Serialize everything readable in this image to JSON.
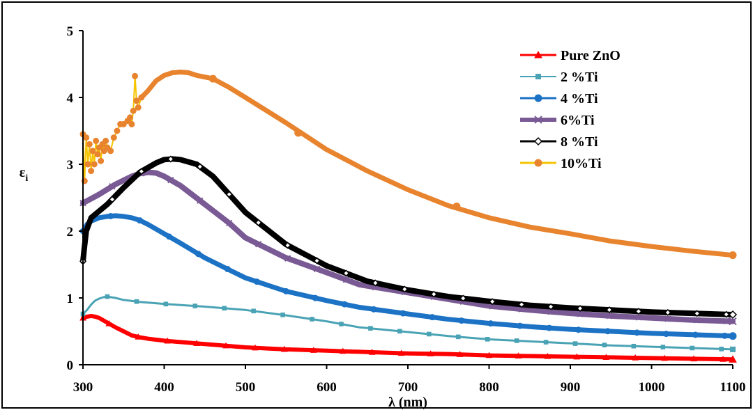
{
  "chart_data": {
    "type": "line",
    "title": "",
    "xlabel": "λ (nm)",
    "ylabel": "εi",
    "ylabel_main": "ε",
    "ylabel_sub": "i",
    "xlim": [
      300,
      1100
    ],
    "ylim": [
      0,
      5
    ],
    "x_ticks": [
      300,
      400,
      500,
      600,
      700,
      800,
      900,
      1000,
      1100
    ],
    "y_ticks": [
      0,
      1,
      2,
      3,
      4,
      5
    ],
    "grid": false,
    "legend_position": "top-right",
    "series": [
      {
        "name": "Pure ZnO",
        "color": "#ff0000",
        "marker": "triangle",
        "points": [
          [
            300,
            0.7
          ],
          [
            305,
            0.72
          ],
          [
            310,
            0.73
          ],
          [
            315,
            0.72
          ],
          [
            320,
            0.7
          ],
          [
            330,
            0.63
          ],
          [
            340,
            0.56
          ],
          [
            350,
            0.5
          ],
          [
            360,
            0.44
          ],
          [
            370,
            0.41
          ],
          [
            380,
            0.39
          ],
          [
            400,
            0.36
          ],
          [
            420,
            0.34
          ],
          [
            450,
            0.31
          ],
          [
            500,
            0.26
          ],
          [
            550,
            0.23
          ],
          [
            600,
            0.21
          ],
          [
            650,
            0.19
          ],
          [
            700,
            0.17
          ],
          [
            750,
            0.16
          ],
          [
            800,
            0.14
          ],
          [
            850,
            0.13
          ],
          [
            900,
            0.12
          ],
          [
            950,
            0.11
          ],
          [
            1000,
            0.1
          ],
          [
            1050,
            0.09
          ],
          [
            1100,
            0.08
          ]
        ]
      },
      {
        "name": "2 %Ti",
        "color": "#4aa3b5",
        "marker": "square",
        "points": [
          [
            300,
            0.76
          ],
          [
            305,
            0.82
          ],
          [
            310,
            0.9
          ],
          [
            315,
            0.96
          ],
          [
            320,
            0.99
          ],
          [
            325,
            1.01
          ],
          [
            330,
            1.02
          ],
          [
            340,
            1.0
          ],
          [
            350,
            0.97
          ],
          [
            370,
            0.94
          ],
          [
            400,
            0.91
          ],
          [
            450,
            0.87
          ],
          [
            500,
            0.82
          ],
          [
            550,
            0.74
          ],
          [
            600,
            0.65
          ],
          [
            640,
            0.56
          ],
          [
            650,
            0.55
          ],
          [
            700,
            0.49
          ],
          [
            750,
            0.43
          ],
          [
            800,
            0.38
          ],
          [
            850,
            0.35
          ],
          [
            900,
            0.32
          ],
          [
            950,
            0.29
          ],
          [
            1000,
            0.27
          ],
          [
            1050,
            0.25
          ],
          [
            1100,
            0.23
          ]
        ]
      },
      {
        "name": "4 %Ti",
        "color": "#1c72c4",
        "marker": "circle",
        "points": [
          [
            300,
            2.0
          ],
          [
            305,
            2.1
          ],
          [
            310,
            2.15
          ],
          [
            320,
            2.2
          ],
          [
            330,
            2.22
          ],
          [
            340,
            2.23
          ],
          [
            350,
            2.22
          ],
          [
            360,
            2.2
          ],
          [
            370,
            2.16
          ],
          [
            380,
            2.1
          ],
          [
            400,
            1.96
          ],
          [
            420,
            1.82
          ],
          [
            450,
            1.6
          ],
          [
            480,
            1.42
          ],
          [
            500,
            1.3
          ],
          [
            550,
            1.1
          ],
          [
            600,
            0.96
          ],
          [
            640,
            0.86
          ],
          [
            700,
            0.76
          ],
          [
            750,
            0.68
          ],
          [
            800,
            0.62
          ],
          [
            850,
            0.57
          ],
          [
            900,
            0.53
          ],
          [
            950,
            0.5
          ],
          [
            1000,
            0.47
          ],
          [
            1050,
            0.45
          ],
          [
            1100,
            0.43
          ]
        ]
      },
      {
        "name": "6%Ti",
        "color": "#7a5a94",
        "marker": "x",
        "points": [
          [
            300,
            2.42
          ],
          [
            320,
            2.55
          ],
          [
            340,
            2.7
          ],
          [
            360,
            2.82
          ],
          [
            370,
            2.86
          ],
          [
            380,
            2.88
          ],
          [
            390,
            2.87
          ],
          [
            400,
            2.82
          ],
          [
            420,
            2.68
          ],
          [
            450,
            2.4
          ],
          [
            480,
            2.12
          ],
          [
            500,
            1.9
          ],
          [
            550,
            1.6
          ],
          [
            600,
            1.38
          ],
          [
            640,
            1.2
          ],
          [
            700,
            1.08
          ],
          [
            750,
            0.98
          ],
          [
            800,
            0.88
          ],
          [
            850,
            0.82
          ],
          [
            900,
            0.77
          ],
          [
            950,
            0.73
          ],
          [
            1000,
            0.7
          ],
          [
            1050,
            0.67
          ],
          [
            1100,
            0.65
          ]
        ]
      },
      {
        "name": "8 %Ti",
        "color": "#000000",
        "marker": "diamond",
        "points": [
          [
            300,
            1.55
          ],
          [
            302,
            1.78
          ],
          [
            304,
            2.0
          ],
          [
            310,
            2.2
          ],
          [
            330,
            2.4
          ],
          [
            350,
            2.65
          ],
          [
            370,
            2.88
          ],
          [
            390,
            3.02
          ],
          [
            400,
            3.07
          ],
          [
            410,
            3.08
          ],
          [
            420,
            3.07
          ],
          [
            440,
            3.0
          ],
          [
            460,
            2.82
          ],
          [
            480,
            2.55
          ],
          [
            500,
            2.28
          ],
          [
            550,
            1.8
          ],
          [
            600,
            1.48
          ],
          [
            650,
            1.25
          ],
          [
            700,
            1.12
          ],
          [
            750,
            1.02
          ],
          [
            800,
            0.95
          ],
          [
            850,
            0.89
          ],
          [
            900,
            0.85
          ],
          [
            950,
            0.82
          ],
          [
            1000,
            0.79
          ],
          [
            1050,
            0.77
          ],
          [
            1100,
            0.75
          ]
        ]
      },
      {
        "name": "10%Ti",
        "color": "#e8832e",
        "marker": "circle",
        "line_color": "#f5c400",
        "points": [
          [
            300,
            3.45
          ],
          [
            302,
            2.75
          ],
          [
            304,
            3.4
          ],
          [
            306,
            3.0
          ],
          [
            308,
            3.3
          ],
          [
            310,
            2.9
          ],
          [
            312,
            3.2
          ],
          [
            314,
            3.0
          ],
          [
            316,
            3.35
          ],
          [
            318,
            3.15
          ],
          [
            320,
            3.25
          ],
          [
            322,
            3.05
          ],
          [
            324,
            3.3
          ],
          [
            326,
            3.2
          ],
          [
            328,
            3.35
          ],
          [
            330,
            3.25
          ],
          [
            334,
            3.2
          ],
          [
            338,
            3.4
          ],
          [
            342,
            3.5
          ],
          [
            346,
            3.6
          ],
          [
            350,
            3.6
          ],
          [
            355,
            3.65
          ],
          [
            358,
            3.7
          ],
          [
            360,
            3.6
          ],
          [
            362,
            3.8
          ],
          [
            364,
            4.32
          ],
          [
            366,
            3.95
          ],
          [
            368,
            3.85
          ],
          [
            372,
            4.0
          ],
          [
            380,
            4.1
          ],
          [
            390,
            4.25
          ],
          [
            400,
            4.33
          ],
          [
            410,
            4.37
          ],
          [
            420,
            4.38
          ],
          [
            430,
            4.37
          ],
          [
            440,
            4.33
          ],
          [
            460,
            4.28
          ],
          [
            480,
            4.15
          ],
          [
            500,
            4.0
          ],
          [
            550,
            3.62
          ],
          [
            600,
            3.22
          ],
          [
            650,
            2.9
          ],
          [
            700,
            2.62
          ],
          [
            750,
            2.38
          ],
          [
            800,
            2.2
          ],
          [
            850,
            2.06
          ],
          [
            900,
            1.96
          ],
          [
            950,
            1.85
          ],
          [
            1000,
            1.77
          ],
          [
            1050,
            1.7
          ],
          [
            1100,
            1.64
          ]
        ]
      }
    ]
  }
}
